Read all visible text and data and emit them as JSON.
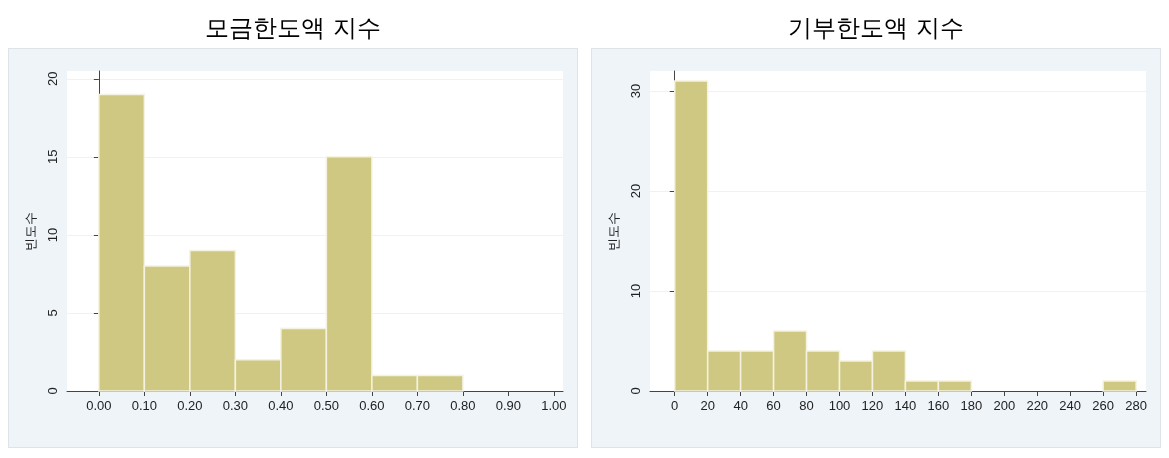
{
  "chart_data": [
    {
      "type": "histogram",
      "title": "모금한도액 지수",
      "ylabel": "빈도수",
      "color": "#cfc882",
      "bins": [
        0,
        0.1,
        0.2,
        0.3,
        0.4,
        0.5,
        0.6,
        0.7,
        0.8
      ],
      "values": [
        19,
        8,
        9,
        2,
        4,
        15,
        1,
        1
      ],
      "xlim": [
        -0.07,
        1.02
      ],
      "xticks": [
        {
          "value": 0,
          "label": "0.00"
        },
        {
          "value": 0.1,
          "label": "0.10"
        },
        {
          "value": 0.2,
          "label": "0.20"
        },
        {
          "value": 0.3,
          "label": "0.30"
        },
        {
          "value": 0.4,
          "label": "0.40"
        },
        {
          "value": 0.5,
          "label": "0.50"
        },
        {
          "value": 0.6,
          "label": "0.60"
        },
        {
          "value": 0.7,
          "label": "0.70"
        },
        {
          "value": 0.8,
          "label": "0.80"
        },
        {
          "value": 0.9,
          "label": "0.90"
        },
        {
          "value": 1,
          "label": "1.00"
        }
      ],
      "ylim": [
        0,
        20.5
      ],
      "yticks": [
        0,
        5,
        10,
        15,
        20
      ],
      "grid": "y"
    },
    {
      "type": "histogram",
      "title": "기부한도액 지수",
      "ylabel": "빈도수",
      "color": "#cfc882",
      "bins": [
        0,
        20,
        40,
        60,
        80,
        100,
        120,
        140,
        160,
        180,
        200,
        220,
        240,
        260,
        280
      ],
      "values": [
        31,
        4,
        4,
        6,
        4,
        3,
        4,
        1,
        1,
        0,
        0,
        0,
        0,
        1
      ],
      "xlim": [
        -15,
        286
      ],
      "xticks": [
        0,
        20,
        40,
        60,
        80,
        100,
        120,
        140,
        160,
        180,
        200,
        220,
        240,
        260,
        280
      ],
      "ylim": [
        0,
        32
      ],
      "yticks": [
        0,
        10,
        20,
        30
      ],
      "grid": "y"
    }
  ]
}
